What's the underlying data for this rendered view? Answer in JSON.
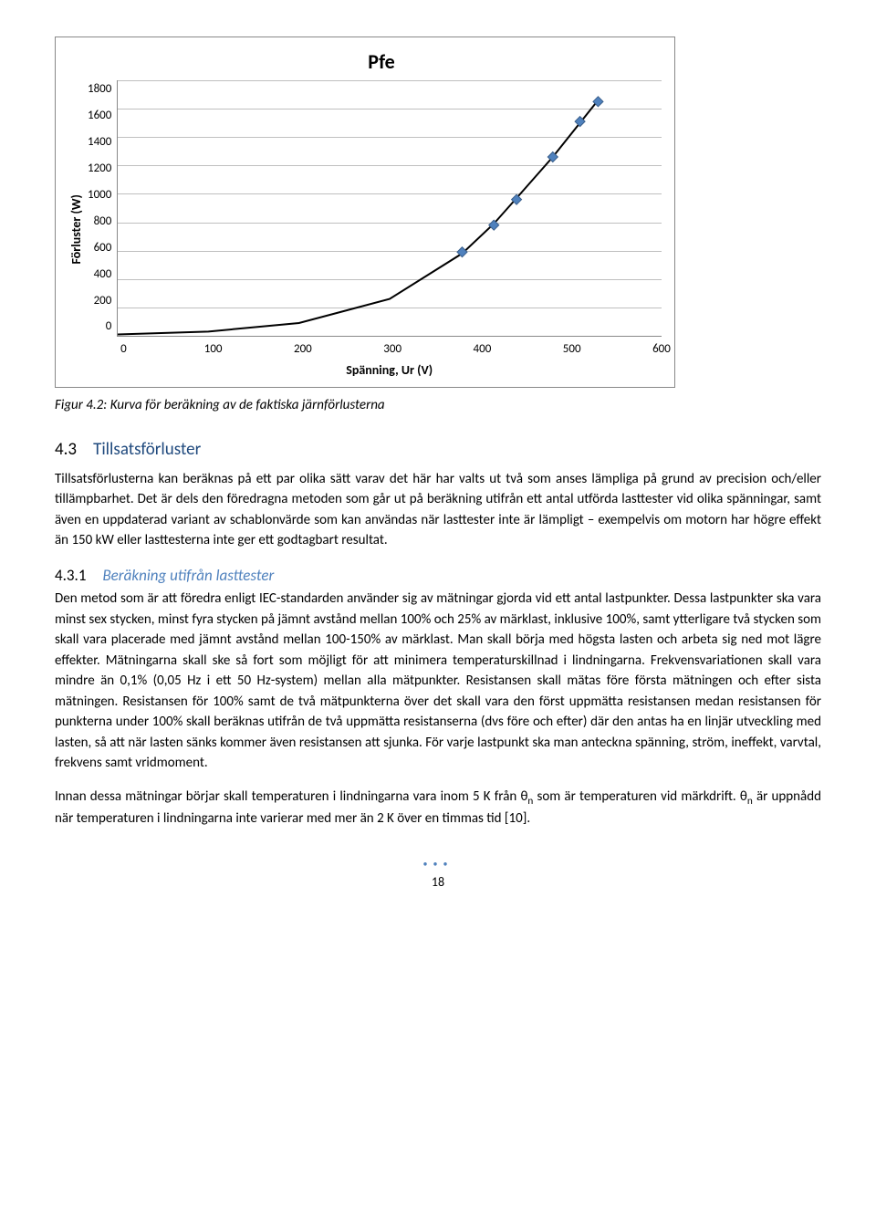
{
  "chart": {
    "type": "scatter-with-trend",
    "title": "Pfe",
    "ylabel": "Förluster (W)",
    "xlabel": "Spänning, Ur  (V)",
    "title_fontsize": 22,
    "label_fontsize": 14,
    "tick_fontsize": 13,
    "xlim": [
      0,
      600
    ],
    "ylim": [
      0,
      1800
    ],
    "xtick_step": 100,
    "ytick_step": 200,
    "yticks": [
      "1800",
      "1600",
      "1400",
      "1200",
      "1000",
      "800",
      "600",
      "400",
      "200",
      "0"
    ],
    "xticks": [
      "0",
      "100",
      "200",
      "300",
      "400",
      "500",
      "600"
    ],
    "grid_color": "#bfbfbf",
    "axis_color": "#888888",
    "background_color": "#ffffff",
    "marker_color": "#4f81bd",
    "marker_outline": "#385d8a",
    "marker_size": 11,
    "marker_shape": "diamond",
    "line_color": "#000000",
    "line_width": 2,
    "points": [
      {
        "x": 380,
        "y": 590
      },
      {
        "x": 415,
        "y": 780
      },
      {
        "x": 440,
        "y": 960
      },
      {
        "x": 480,
        "y": 1260
      },
      {
        "x": 510,
        "y": 1510
      },
      {
        "x": 530,
        "y": 1650
      }
    ],
    "trend_curve": [
      {
        "x": 0,
        "y": 10
      },
      {
        "x": 100,
        "y": 30
      },
      {
        "x": 200,
        "y": 90
      },
      {
        "x": 300,
        "y": 260
      },
      {
        "x": 380,
        "y": 580
      },
      {
        "x": 415,
        "y": 790
      },
      {
        "x": 440,
        "y": 970
      },
      {
        "x": 480,
        "y": 1260
      },
      {
        "x": 510,
        "y": 1500
      },
      {
        "x": 530,
        "y": 1660
      }
    ]
  },
  "figcaption": "Figur 4.2: Kurva för beräkning av de faktiska järnförlusterna",
  "section": {
    "num": "4.3",
    "title": "Tillsatsförluster"
  },
  "para1": "Tillsatsförlusterna kan beräknas på ett par olika sätt varav det här har valts ut två som anses lämpliga på grund av precision och/eller tillämpbarhet. Det är dels den föredragna metoden som går ut på beräkning utifrån ett antal utförda lasttester vid olika spänningar, samt även en uppdaterad variant av schablonvärde som kan användas när lasttester inte är lämpligt – exempelvis om motorn har högre effekt än 150 kW eller lasttesterna inte ger ett godtagbart resultat.",
  "subsection": {
    "num": "4.3.1",
    "title": "Beräkning utifrån lasttester"
  },
  "para2": "Den metod som är att föredra enligt IEC-standarden använder sig av mätningar gjorda vid ett antal lastpunkter. Dessa lastpunkter ska vara minst sex stycken, minst fyra stycken på jämnt avstånd mellan 100% och 25% av märklast, inklusive 100%, samt ytterligare två stycken som skall vara placerade med jämnt avstånd mellan 100-150% av märklast. Man skall börja med högsta lasten och arbeta sig ned mot lägre effekter. Mätningarna skall ske så fort som möjligt för att minimera temperaturskillnad i lindningarna. Frekvensvariationen skall vara mindre än 0,1% (0,05 Hz i ett 50 Hz-system) mellan alla mätpunkter. Resistansen skall mätas före första mätningen och efter sista mätningen. Resistansen för 100% samt de två mätpunkterna över det skall vara den först uppmätta resistansen medan resistansen för punkterna under 100% skall beräknas utifrån de två uppmätta resistanserna (dvs före och efter) där den antas ha en linjär utveckling med lasten, så att när lasten sänks kommer även resistansen att sjunka. För varje lastpunkt ska man anteckna spänning, ström, ineffekt, varvtal, frekvens samt vridmoment.",
  "para3_pre": "Innan dessa mätningar börjar skall temperaturen i lindningarna vara inom 5 K från θ",
  "para3_mid": " som är temperaturen vid märkdrift. θ",
  "para3_post": " är uppnådd när temperaturen i lindningarna inte varierar med mer än 2 K över en timmas tid [10].",
  "theta_sub": "n",
  "page_number": "18",
  "colors": {
    "section_heading": "#1f497d",
    "subsection_heading": "#4f81bd",
    "dots": "#4f81bd"
  }
}
